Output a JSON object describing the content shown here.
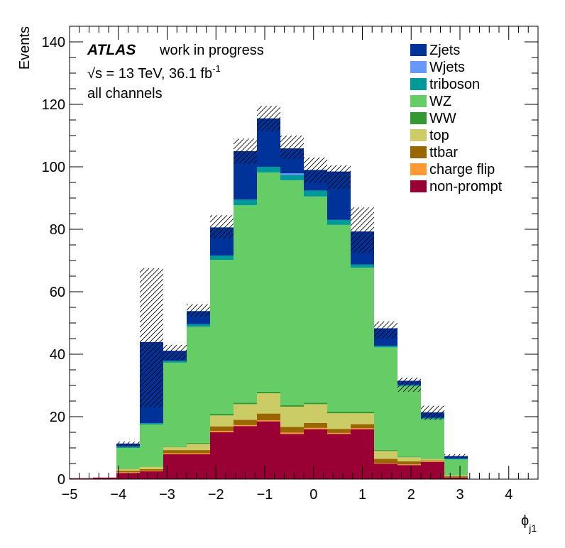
{
  "chart_data": {
    "type": "bar",
    "stacked": true,
    "experiment": "ATLAS",
    "status": "work in progress",
    "energy_prefix": "√s = 13 TeV, 36.1 fb",
    "energy_sup": "-1",
    "channel_text": "all channels",
    "ylabel": "Events",
    "xlabel_main": "ϕ",
    "xlabel_sub": "j1",
    "xlim": [
      -5,
      4.6
    ],
    "ylim": [
      0,
      145
    ],
    "x_ticks": [
      "−5",
      "−4",
      "−3",
      "−2",
      "−1",
      "0",
      "1",
      "2",
      "3",
      "4"
    ],
    "x_tick_values": [
      -5,
      -4,
      -3,
      -2,
      -1,
      0,
      1,
      2,
      3,
      4
    ],
    "y_ticks": [
      "0",
      "20",
      "40",
      "60",
      "80",
      "100",
      "120",
      "140"
    ],
    "y_tick_values": [
      0,
      20,
      40,
      60,
      80,
      100,
      120,
      140
    ],
    "bin_edges": [
      -5.0,
      -4.52,
      -4.04,
      -3.56,
      -3.08,
      -2.6,
      -2.12,
      -1.64,
      -1.16,
      -0.68,
      -0.2,
      0.28,
      0.76,
      1.24,
      1.72,
      2.2,
      2.68,
      3.16,
      3.64,
      4.12,
      4.6
    ],
    "series": [
      {
        "name": "non-prompt",
        "color": "#990033",
        "values": [
          0.3,
          0.5,
          2.0,
          2.5,
          8.0,
          8.0,
          15.0,
          17.0,
          18.5,
          14.5,
          16.0,
          14.5,
          16.0,
          5.0,
          4.5,
          5.5,
          0.5,
          0,
          0,
          0
        ]
      },
      {
        "name": "charge flip",
        "color": "#ff9933",
        "values": [
          0,
          0,
          0.2,
          0.2,
          0.3,
          0.3,
          0.4,
          0.3,
          0.3,
          0.4,
          0.4,
          0.3,
          0.3,
          0.2,
          0.2,
          0.2,
          0,
          0,
          0,
          0
        ]
      },
      {
        "name": "ttbar",
        "color": "#996600",
        "values": [
          0,
          0,
          0.5,
          0.5,
          1.0,
          1.0,
          1.5,
          1.7,
          2.2,
          1.8,
          1.6,
          1.3,
          1.3,
          1.3,
          1.0,
          0.3,
          0.4,
          0,
          0,
          0
        ]
      },
      {
        "name": "top",
        "color": "#cccc66",
        "values": [
          0,
          0,
          0.6,
          0.8,
          1.0,
          2.0,
          3.5,
          5.0,
          6.5,
          6.5,
          6.0,
          5.0,
          3.5,
          2.5,
          1.3,
          0.5,
          0.3,
          0,
          0,
          0
        ]
      },
      {
        "name": "WW",
        "color": "#339933",
        "values": [
          0,
          0,
          0.1,
          0.1,
          0.2,
          0.3,
          0.5,
          0.5,
          0.5,
          0.5,
          0.5,
          0.5,
          0.5,
          0.3,
          0.2,
          0.1,
          0.1,
          0,
          0,
          0
        ]
      },
      {
        "name": "WZ",
        "color": "#66cc66",
        "values": [
          0,
          0,
          6.6,
          13.4,
          26.8,
          37.2,
          49.3,
          63.2,
          70.2,
          72.0,
          66.0,
          59.8,
          46.1,
          32.9,
          22.5,
          12.6,
          5.0,
          0,
          0,
          0
        ]
      },
      {
        "name": "triboson",
        "color": "#009999",
        "values": [
          0,
          0,
          0.4,
          0.4,
          0.6,
          0.8,
          1.4,
          1.8,
          1.8,
          1.7,
          1.9,
          1.6,
          1.0,
          0.5,
          0.5,
          0.4,
          0.3,
          0,
          0,
          0
        ]
      },
      {
        "name": "Wjets",
        "color": "#6699ff",
        "values": [
          0,
          0,
          0,
          0,
          0,
          0,
          0,
          0,
          0,
          0.5,
          0,
          0,
          0,
          0,
          0,
          0,
          0,
          0,
          0,
          0
        ]
      },
      {
        "name": "Zjets",
        "color": "#003399",
        "values": [
          0,
          0,
          1.0,
          26.0,
          3.2,
          4.2,
          9.0,
          15.5,
          15.5,
          8.0,
          6.6,
          15.5,
          10.6,
          5.6,
          1.3,
          1.8,
          0.8,
          0,
          0,
          0
        ]
      }
    ],
    "uncertainty_band": {
      "down": [
        0.3,
        0.5,
        10.5,
        23.0,
        38.0,
        52.0,
        77.0,
        101.0,
        111.5,
        102.5,
        95.0,
        93.0,
        72.5,
        45.0,
        28.0,
        19.0,
        6.8,
        0,
        0,
        0
      ],
      "up": [
        0.3,
        0.5,
        12.0,
        67.5,
        43.0,
        56.0,
        84.5,
        109.0,
        119.5,
        110.0,
        103.0,
        100.5,
        87.0,
        50.5,
        32.5,
        23.5,
        8.0,
        0,
        0,
        0
      ]
    },
    "legend": [
      "Zjets",
      "Wjets",
      "triboson",
      "WZ",
      "WW",
      "top",
      "ttbar",
      "charge flip",
      "non-prompt"
    ],
    "legend_position": "top-right",
    "grid": false
  }
}
